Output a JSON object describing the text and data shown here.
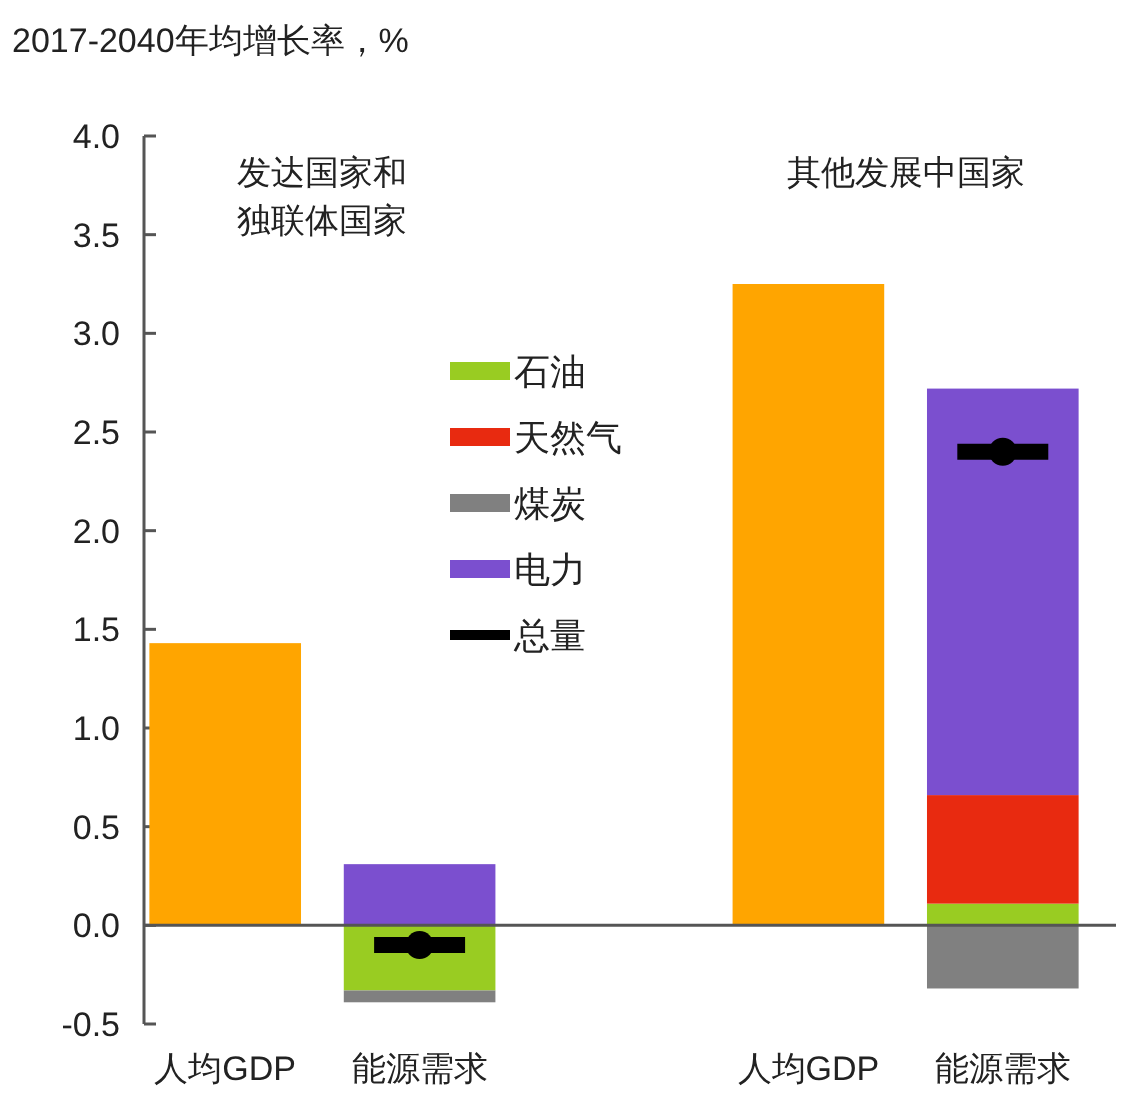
{
  "chart_data": {
    "type": "bar",
    "title": "2017-2040年均增长率，%",
    "categories": [
      "人均GDP",
      "能源需求",
      null,
      "人均GDP",
      "能源需求"
    ],
    "stacked": true,
    "series": [
      {
        "color": "#ffa500",
        "values": [
          1.43,
          null,
          null,
          3.25,
          null
        ]
      },
      {
        "name": "石油",
        "color": "#99cc22",
        "values": [
          null,
          -0.33,
          null,
          null,
          0.11
        ]
      },
      {
        "name": "天然气",
        "color": "#e82a10",
        "values": [
          null,
          null,
          null,
          null,
          0.55
        ]
      },
      {
        "name": "煤炭",
        "color": "#808080",
        "values": [
          null,
          -0.06,
          null,
          null,
          -0.32
        ]
      },
      {
        "name": "电力",
        "color": "#7b4fcf",
        "values": [
          null,
          0.31,
          null,
          null,
          2.06
        ]
      },
      {
        "name": "总量",
        "type": "scatter",
        "color": "#000000",
        "values": [
          null,
          -0.1,
          null,
          null,
          2.4
        ]
      }
    ],
    "ylim": [
      -0.5,
      4.0
    ],
    "yticks": [
      {
        "value": -0.5,
        "label": "-0.5"
      },
      {
        "value": 0,
        "label": "0.0"
      },
      {
        "value": 0.5,
        "label": "0.5"
      },
      {
        "value": 1,
        "label": "1.0"
      },
      {
        "value": 1.5,
        "label": "1.5"
      },
      {
        "value": 2,
        "label": "2.0"
      },
      {
        "value": 2.5,
        "label": "2.5"
      },
      {
        "value": 3,
        "label": "3.0"
      },
      {
        "value": 3.5,
        "label": "3.5"
      },
      {
        "value": 4,
        "label": "4.0"
      }
    ],
    "legend": "center",
    "annotations": [
      "发达国家和独联体国家",
      "其他发展中国家"
    ]
  }
}
